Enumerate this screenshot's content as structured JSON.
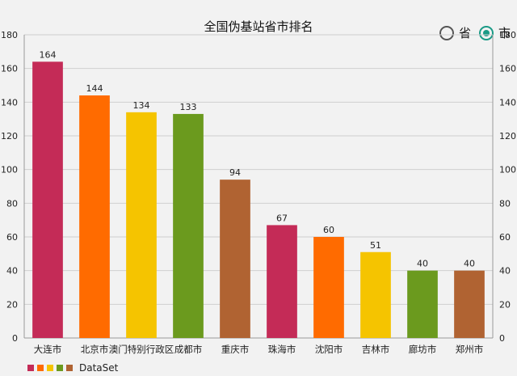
{
  "chart_data": {
    "type": "bar",
    "title": "全国伪基站省市排名",
    "categories": [
      "大连市",
      "北京市",
      "澳门特别行政区",
      "成都市",
      "重庆市",
      "珠海市",
      "沈阳市",
      "吉林市",
      "廊坊市",
      "郑州市"
    ],
    "values": [
      164,
      144,
      134,
      133,
      94,
      67,
      60,
      51,
      40,
      40
    ],
    "colors": [
      "#c42b57",
      "#ff6b00",
      "#f5c400",
      "#6b9a1e",
      "#b06332",
      "#c42b57",
      "#ff6b00",
      "#f5c400",
      "#6b9a1e",
      "#b06332"
    ],
    "ylim": [
      0,
      180
    ],
    "yticks": [
      0,
      20,
      40,
      60,
      80,
      100,
      120,
      140,
      160,
      180
    ],
    "grid": true,
    "legend": {
      "position": "bottom-left",
      "label": "DataSet",
      "colors": [
        "#c42b57",
        "#ff6b00",
        "#f5c400",
        "#6b9a1e",
        "#b06332"
      ]
    }
  },
  "controls": {
    "radio_province_label": "省",
    "radio_city_label": "市",
    "selected": "市"
  }
}
